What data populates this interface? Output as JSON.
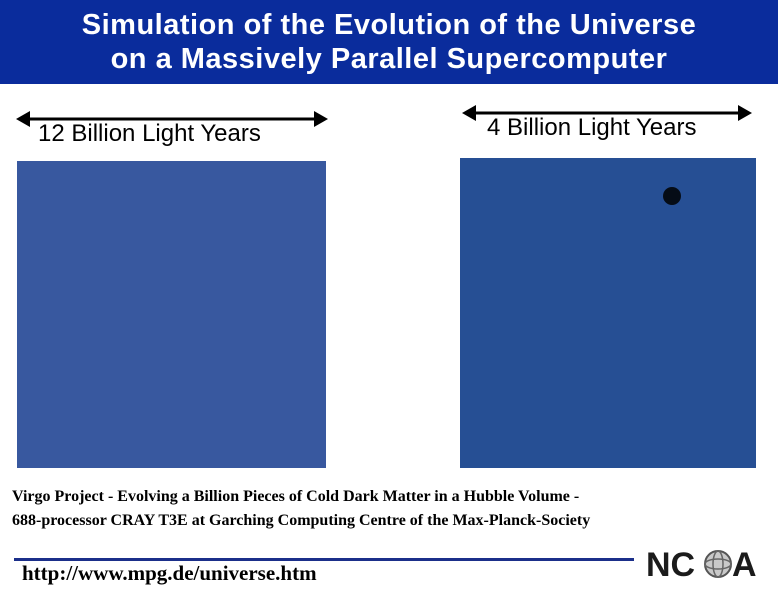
{
  "header": {
    "title_line1": "Simulation of the Evolution of the Universe",
    "title_line2": "on a Massively Parallel Supercomputer",
    "background_color": "#0a2c9c"
  },
  "panels": {
    "left": {
      "scale_label": "12 Billion Light Years"
    },
    "right": {
      "scale_label": "4 Billion Light Years"
    }
  },
  "caption": {
    "line1": "Virgo Project - Evolving a Billion Pieces of Cold Dark Matter in a Hubble Volume -",
    "line2": "688-processor CRAY T3E at Garching Computing Centre of the Max-Planck-Society"
  },
  "footer": {
    "url": "http://www.mpg.de/universe.htm",
    "logo": {
      "text_left": "NC",
      "text_right": "A"
    }
  },
  "colors": {
    "void": "#0b1f5c",
    "filament": "#2f8a4a",
    "cluster": "#d0521a",
    "hot": "#ffd23a"
  }
}
